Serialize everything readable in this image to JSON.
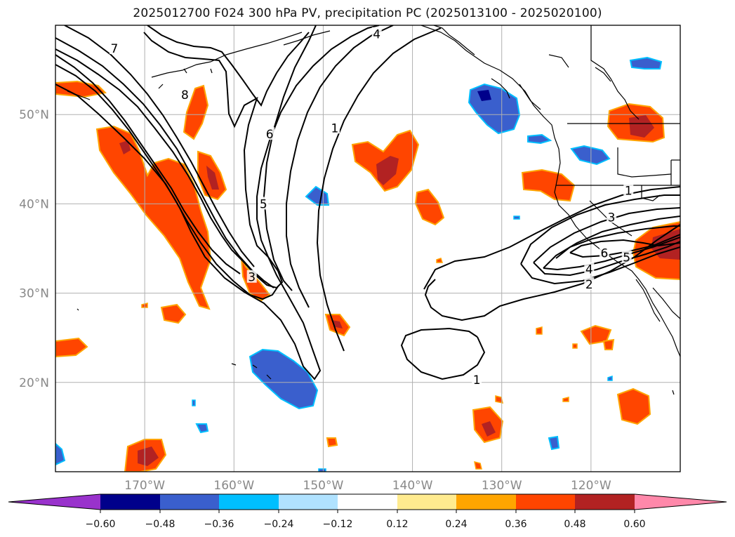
{
  "title": "2025012700 F024 300 hPa PV, precipitation PC (2025013100 - 2025020100)",
  "map": {
    "projection": "PlateCarree",
    "lon_range": [
      -180,
      -110
    ],
    "lat_range": [
      10,
      60
    ],
    "gridlines": true,
    "lon_ticks": [
      {
        "lon": -170,
        "label": "170°W"
      },
      {
        "lon": -160,
        "label": "160°W"
      },
      {
        "lon": -150,
        "label": "150°W"
      },
      {
        "lon": -140,
        "label": "140°W"
      },
      {
        "lon": -130,
        "label": "130°W"
      },
      {
        "lon": -120,
        "label": "120°W"
      }
    ],
    "lat_ticks": [
      {
        "lat": 20,
        "label": "20°N"
      },
      {
        "lat": 30,
        "label": "30°N"
      },
      {
        "lat": 40,
        "label": "40°N"
      },
      {
        "lat": 50,
        "label": "50°N"
      }
    ]
  },
  "pv_contour_labels": [
    {
      "text": "7",
      "lon": -173.4,
      "lat": 57.4
    },
    {
      "text": "8",
      "lon": -165.5,
      "lat": 52.2
    },
    {
      "text": "6",
      "lon": -156.0,
      "lat": 47.8
    },
    {
      "text": "5",
      "lon": -156.7,
      "lat": 40.0
    },
    {
      "text": "1",
      "lon": -148.7,
      "lat": 48.5
    },
    {
      "text": "4",
      "lon": -144.0,
      "lat": 59.0
    },
    {
      "text": "3",
      "lon": -158.0,
      "lat": 31.8
    },
    {
      "text": "1",
      "lon": -132.8,
      "lat": 20.3
    },
    {
      "text": "1",
      "lon": -115.8,
      "lat": 41.5
    },
    {
      "text": "3",
      "lon": -117.7,
      "lat": 38.5
    },
    {
      "text": "6",
      "lon": -118.5,
      "lat": 34.5
    },
    {
      "text": "5",
      "lon": -116.0,
      "lat": 34.0
    },
    {
      "text": "4",
      "lon": -120.2,
      "lat": 32.7
    },
    {
      "text": "2",
      "lon": -120.2,
      "lat": 31.0
    }
  ],
  "colorbar": {
    "levels": [
      "−0.60",
      "−0.48",
      "−0.36",
      "−0.24",
      "−0.12",
      "0.12",
      "0.24",
      "0.36",
      "0.48",
      "0.60"
    ],
    "colors": [
      "#9932cc",
      "#00008b",
      "#3a5fcd",
      "#00bfff",
      "#b0e2ff",
      "#ffffff",
      "#ffeb8f",
      "#ffa500",
      "#ff4500",
      "#b22222",
      "#ff88aa"
    ],
    "extend": "both"
  },
  "colors": {
    "red": "#ff4500",
    "darkred": "#b22222",
    "orange": "#ffa500",
    "yellow": "#ffeb8f",
    "blue": "#3a5fcd",
    "navy": "#00008b",
    "cyan": "#00bfff",
    "lightblue": "#b0e2ff"
  }
}
